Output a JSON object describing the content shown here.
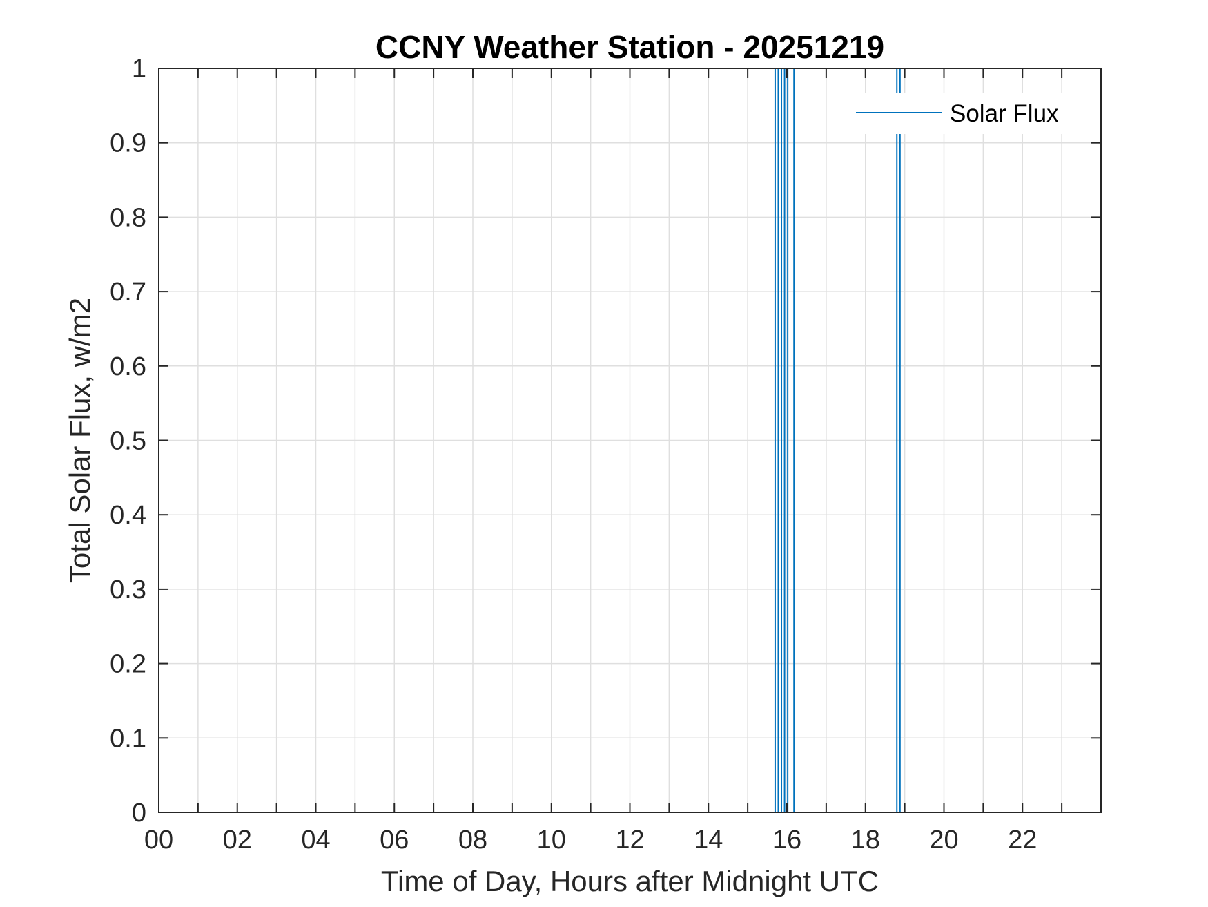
{
  "chart_data": {
    "type": "line",
    "title": "CCNY Weather Station - 20251219",
    "xlabel": "Time of Day, Hours after Midnight UTC",
    "ylabel": "Total Solar Flux, w/m2",
    "xlim": [
      0,
      24
    ],
    "ylim": [
      0,
      1
    ],
    "xticks": [
      0,
      2,
      4,
      6,
      8,
      10,
      12,
      14,
      16,
      18,
      20,
      22
    ],
    "xtick_labels": [
      "00",
      "02",
      "04",
      "06",
      "08",
      "10",
      "12",
      "14",
      "16",
      "18",
      "20",
      "22"
    ],
    "yticks": [
      0,
      0.1,
      0.2,
      0.3,
      0.4,
      0.5,
      0.6,
      0.7,
      0.8,
      0.9,
      1
    ],
    "ytick_labels": [
      "0",
      "0.1",
      "0.2",
      "0.3",
      "0.4",
      "0.5",
      "0.6",
      "0.7",
      "0.8",
      "0.9",
      "1"
    ],
    "grid": true,
    "legend_position": "top-right",
    "series": [
      {
        "name": "Solar Flux",
        "color": "#0072BD",
        "spikes_x": [
          15.7,
          15.78,
          15.86,
          15.94,
          16.02,
          16.18,
          18.8,
          18.88
        ]
      }
    ]
  }
}
